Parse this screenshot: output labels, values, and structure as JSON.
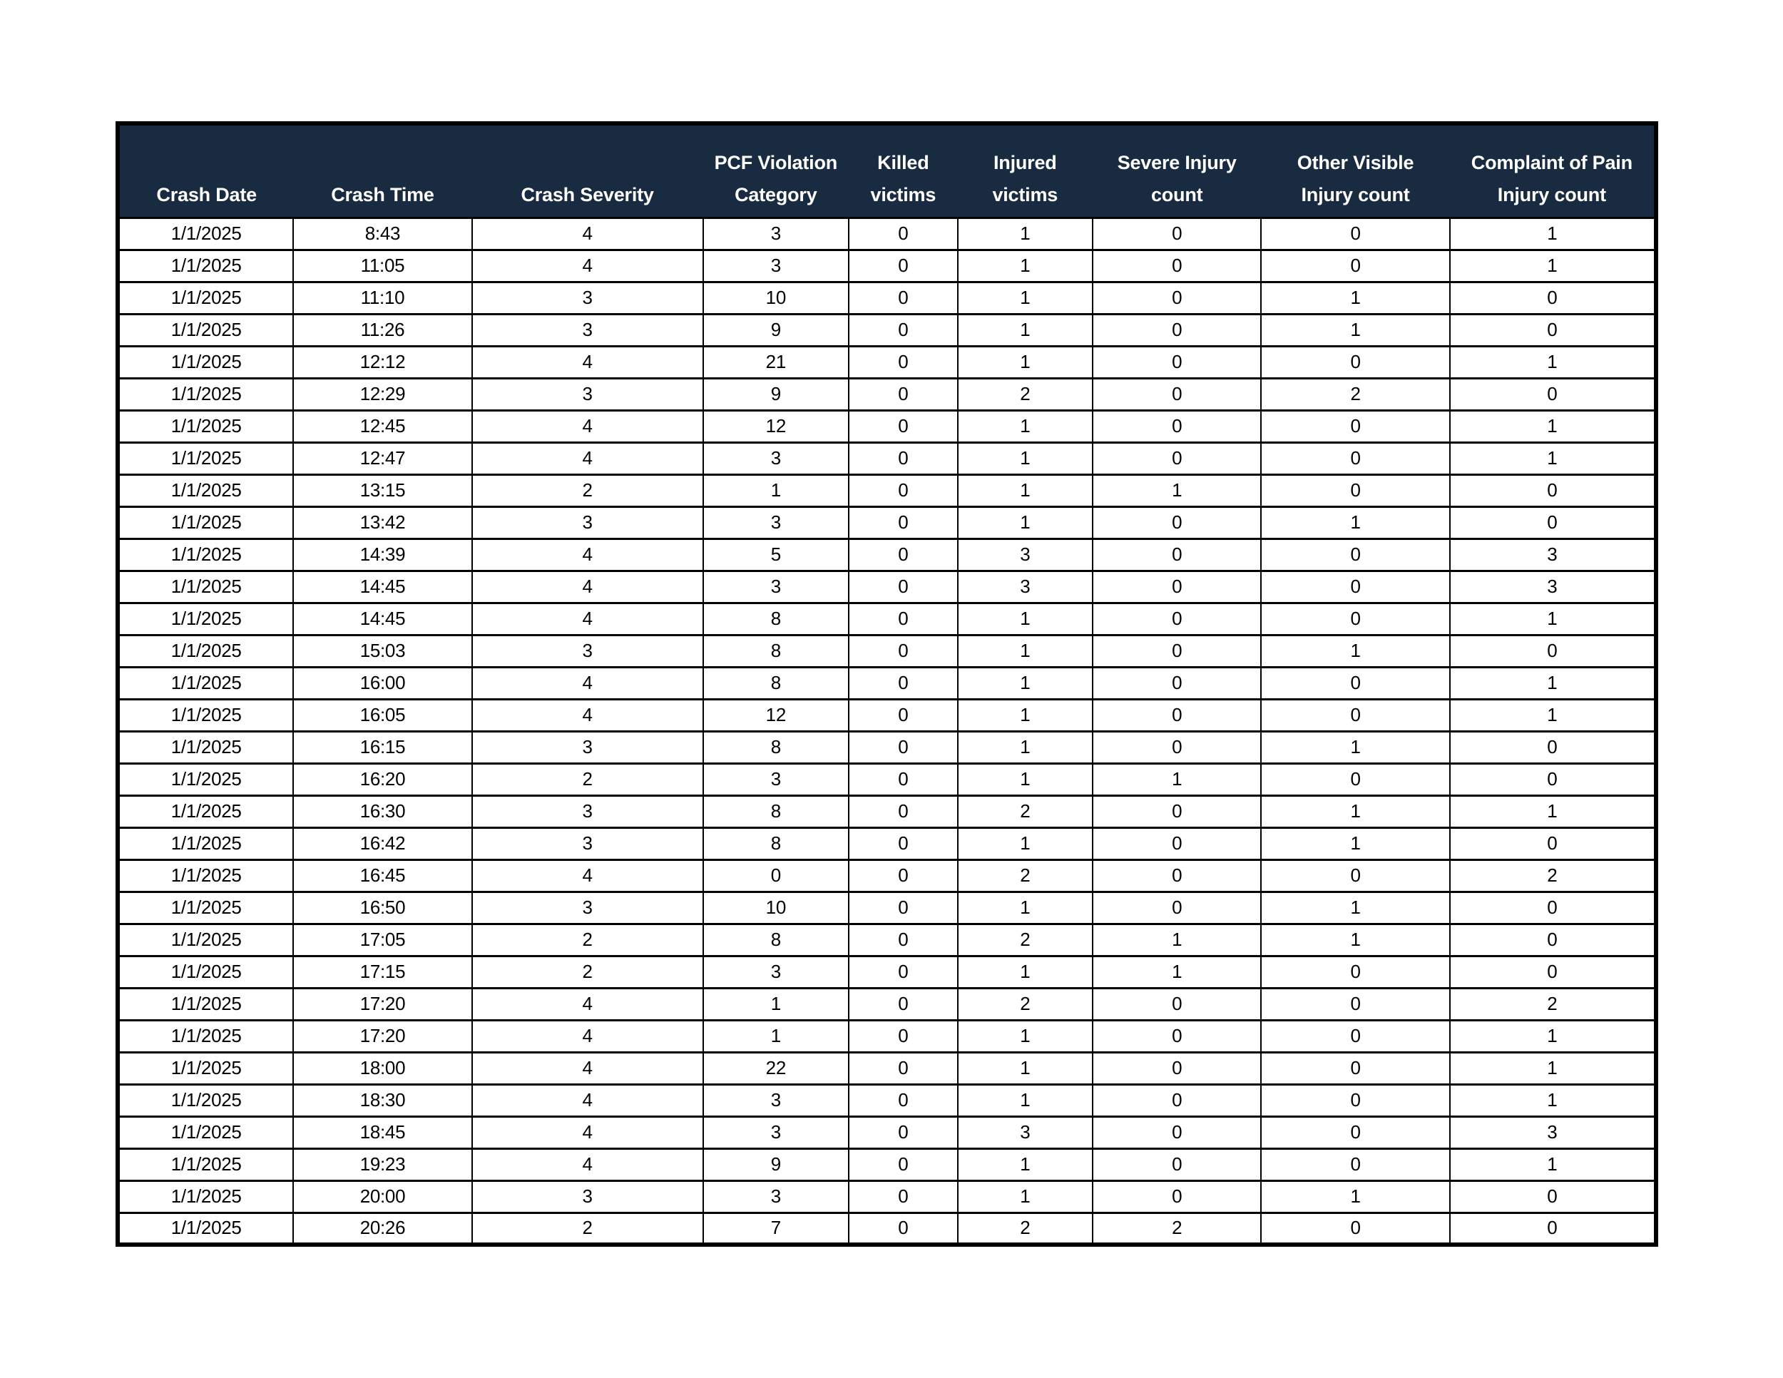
{
  "table": {
    "columns": [
      "Crash Date",
      "Crash Time",
      "Crash Severity",
      "PCF Violation\nCategory",
      "Killed\nvictims",
      "Injured\nvictims",
      "Severe Injury\ncount",
      "Other Visible\nInjury count",
      "Complaint of Pain\nInjury count"
    ],
    "rows": [
      [
        "1/1/2025",
        "8:43",
        "4",
        "3",
        "0",
        "1",
        "0",
        "0",
        "1"
      ],
      [
        "1/1/2025",
        "11:05",
        "4",
        "3",
        "0",
        "1",
        "0",
        "0",
        "1"
      ],
      [
        "1/1/2025",
        "11:10",
        "3",
        "10",
        "0",
        "1",
        "0",
        "1",
        "0"
      ],
      [
        "1/1/2025",
        "11:26",
        "3",
        "9",
        "0",
        "1",
        "0",
        "1",
        "0"
      ],
      [
        "1/1/2025",
        "12:12",
        "4",
        "21",
        "0",
        "1",
        "0",
        "0",
        "1"
      ],
      [
        "1/1/2025",
        "12:29",
        "3",
        "9",
        "0",
        "2",
        "0",
        "2",
        "0"
      ],
      [
        "1/1/2025",
        "12:45",
        "4",
        "12",
        "0",
        "1",
        "0",
        "0",
        "1"
      ],
      [
        "1/1/2025",
        "12:47",
        "4",
        "3",
        "0",
        "1",
        "0",
        "0",
        "1"
      ],
      [
        "1/1/2025",
        "13:15",
        "2",
        "1",
        "0",
        "1",
        "1",
        "0",
        "0"
      ],
      [
        "1/1/2025",
        "13:42",
        "3",
        "3",
        "0",
        "1",
        "0",
        "1",
        "0"
      ],
      [
        "1/1/2025",
        "14:39",
        "4",
        "5",
        "0",
        "3",
        "0",
        "0",
        "3"
      ],
      [
        "1/1/2025",
        "14:45",
        "4",
        "3",
        "0",
        "3",
        "0",
        "0",
        "3"
      ],
      [
        "1/1/2025",
        "14:45",
        "4",
        "8",
        "0",
        "1",
        "0",
        "0",
        "1"
      ],
      [
        "1/1/2025",
        "15:03",
        "3",
        "8",
        "0",
        "1",
        "0",
        "1",
        "0"
      ],
      [
        "1/1/2025",
        "16:00",
        "4",
        "8",
        "0",
        "1",
        "0",
        "0",
        "1"
      ],
      [
        "1/1/2025",
        "16:05",
        "4",
        "12",
        "0",
        "1",
        "0",
        "0",
        "1"
      ],
      [
        "1/1/2025",
        "16:15",
        "3",
        "8",
        "0",
        "1",
        "0",
        "1",
        "0"
      ],
      [
        "1/1/2025",
        "16:20",
        "2",
        "3",
        "0",
        "1",
        "1",
        "0",
        "0"
      ],
      [
        "1/1/2025",
        "16:30",
        "3",
        "8",
        "0",
        "2",
        "0",
        "1",
        "1"
      ],
      [
        "1/1/2025",
        "16:42",
        "3",
        "8",
        "0",
        "1",
        "0",
        "1",
        "0"
      ],
      [
        "1/1/2025",
        "16:45",
        "4",
        "0",
        "0",
        "2",
        "0",
        "0",
        "2"
      ],
      [
        "1/1/2025",
        "16:50",
        "3",
        "10",
        "0",
        "1",
        "0",
        "1",
        "0"
      ],
      [
        "1/1/2025",
        "17:05",
        "2",
        "8",
        "0",
        "2",
        "1",
        "1",
        "0"
      ],
      [
        "1/1/2025",
        "17:15",
        "2",
        "3",
        "0",
        "1",
        "1",
        "0",
        "0"
      ],
      [
        "1/1/2025",
        "17:20",
        "4",
        "1",
        "0",
        "2",
        "0",
        "0",
        "2"
      ],
      [
        "1/1/2025",
        "17:20",
        "4",
        "1",
        "0",
        "1",
        "0",
        "0",
        "1"
      ],
      [
        "1/1/2025",
        "18:00",
        "4",
        "22",
        "0",
        "1",
        "0",
        "0",
        "1"
      ],
      [
        "1/1/2025",
        "18:30",
        "4",
        "3",
        "0",
        "1",
        "0",
        "0",
        "1"
      ],
      [
        "1/1/2025",
        "18:45",
        "4",
        "3",
        "0",
        "3",
        "0",
        "0",
        "3"
      ],
      [
        "1/1/2025",
        "19:23",
        "4",
        "9",
        "0",
        "1",
        "0",
        "0",
        "1"
      ],
      [
        "1/1/2025",
        "20:00",
        "3",
        "3",
        "0",
        "1",
        "0",
        "1",
        "0"
      ],
      [
        "1/1/2025",
        "20:26",
        "2",
        "7",
        "0",
        "2",
        "2",
        "0",
        "0"
      ]
    ],
    "column_widths_pct": [
      11.42,
      11.6,
      15.02,
      9.48,
      7.07,
      8.78,
      10.96,
      12.25,
      13.41
    ]
  },
  "colors": {
    "header_bg": "#182B40",
    "header_text": "#FFFFFF",
    "body_text": "#000000",
    "border": "#000000",
    "page_bg": "#FFFFFF"
  }
}
